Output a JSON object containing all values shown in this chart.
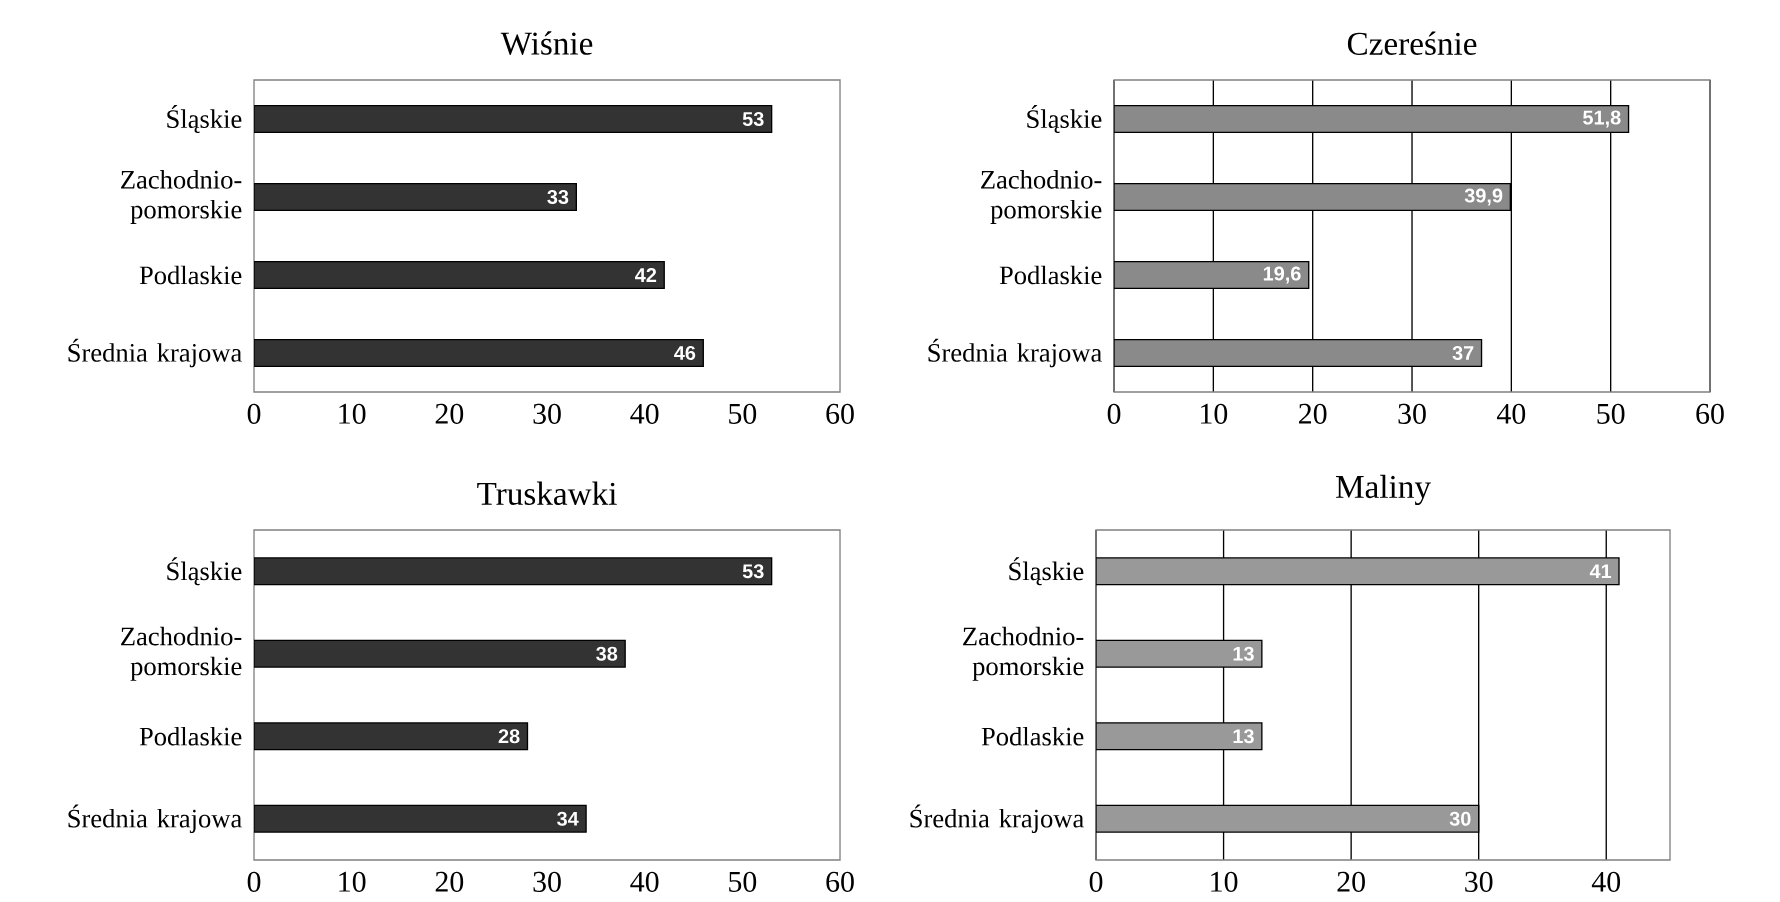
{
  "chart_data": [
    {
      "type": "bar",
      "orientation": "horizontal",
      "title": "Wiśnie",
      "categories": [
        "Śląskie",
        "Zachodnio-pomorskie",
        "Podlaskie",
        "Średnia krajowa"
      ],
      "values": [
        53,
        33,
        42,
        46
      ],
      "value_labels": [
        "53",
        "33",
        "42",
        "46"
      ],
      "color": "#333333",
      "xlim": [
        0,
        60
      ],
      "xticks": [
        0,
        10,
        20,
        30,
        40,
        50,
        60
      ],
      "grid": false
    },
    {
      "type": "bar",
      "orientation": "horizontal",
      "title": "Czereśnie",
      "categories": [
        "Śląskie",
        "Zachodnio-pomorskie",
        "Podlaskie",
        "Średnia krajowa"
      ],
      "values": [
        51.8,
        39.9,
        19.6,
        37
      ],
      "value_labels": [
        "51,8",
        "39,9",
        "19,6",
        "37"
      ],
      "color": "#8a8a8a",
      "xlim": [
        0,
        60
      ],
      "xticks": [
        0,
        10,
        20,
        30,
        40,
        50,
        60
      ],
      "grid": "x"
    },
    {
      "type": "bar",
      "orientation": "horizontal",
      "title": "Truskawki",
      "categories": [
        "Śląskie",
        "Zachodnio-pomorskie",
        "Podlaskie",
        "Średnia krajowa"
      ],
      "values": [
        53,
        38,
        28,
        34
      ],
      "value_labels": [
        "53",
        "38",
        "28",
        "34"
      ],
      "color": "#333333",
      "xlim": [
        0,
        60
      ],
      "xticks": [
        0,
        10,
        20,
        30,
        40,
        50,
        60
      ],
      "grid": false
    },
    {
      "type": "bar",
      "orientation": "horizontal",
      "title": "Maliny",
      "categories": [
        "Śląskie",
        "Zachodnio-pomorskie",
        "Podlaskie",
        "Średnia krajowa"
      ],
      "values": [
        41,
        13,
        13,
        30
      ],
      "value_labels": [
        "41",
        "13",
        "13",
        "30"
      ],
      "color": "#999999",
      "xlim": [
        0,
        45
      ],
      "xticks": [
        0,
        10,
        20,
        30,
        40
      ],
      "grid": "x"
    }
  ]
}
